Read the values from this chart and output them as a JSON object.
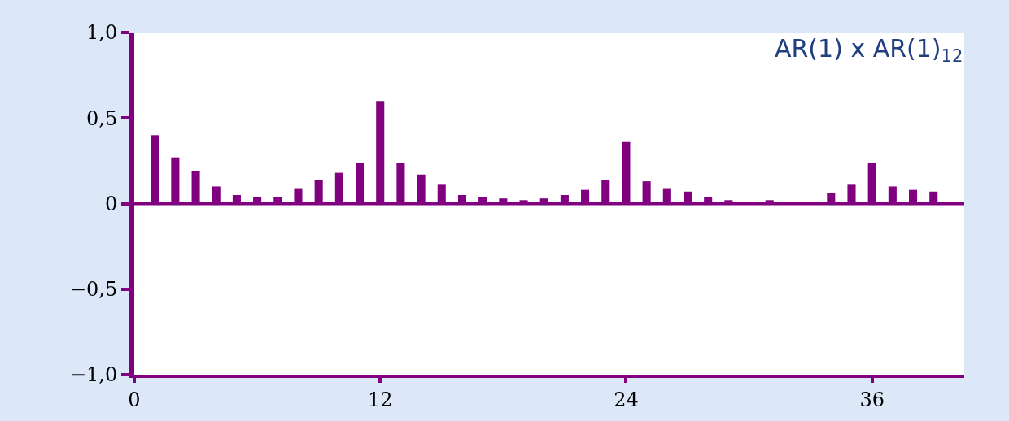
{
  "chart_data": {
    "type": "bar",
    "title": "AR(1) x AR(1)$_{12}$",
    "x": [
      1,
      2,
      3,
      4,
      5,
      6,
      7,
      8,
      9,
      10,
      11,
      12,
      13,
      14,
      15,
      16,
      17,
      18,
      19,
      20,
      21,
      22,
      23,
      24,
      25,
      26,
      27,
      28,
      29,
      30,
      31,
      32,
      33,
      34,
      35,
      36,
      37,
      38,
      39
    ],
    "values": [
      0.4,
      0.27,
      0.19,
      0.1,
      0.05,
      0.04,
      0.04,
      0.09,
      0.14,
      0.18,
      0.24,
      0.6,
      0.24,
      0.17,
      0.11,
      0.05,
      0.04,
      0.03,
      0.02,
      0.03,
      0.05,
      0.08,
      0.14,
      0.36,
      0.13,
      0.09,
      0.07,
      0.04,
      0.02,
      0.01,
      0.02,
      0.01,
      0.01,
      0.06,
      0.11,
      0.24,
      0.1,
      0.08,
      0.07
    ],
    "color": "#800080",
    "xlim": [
      0,
      40.5
    ],
    "xticks": [
      0,
      12,
      24,
      36
    ],
    "ylim": [
      -1,
      1
    ],
    "yticks": [
      {
        "value": 1,
        "label": "1,0"
      },
      {
        "value": 0.5,
        "label": "0,5"
      },
      0,
      {
        "value": -0.5,
        "label": "−0,5"
      },
      {
        "value": -1,
        "label": "−1,0"
      }
    ],
    "ref_lines": [
      {
        "axis": "y",
        "value": 0,
        "color": "#800080"
      }
    ],
    "grid": false
  }
}
